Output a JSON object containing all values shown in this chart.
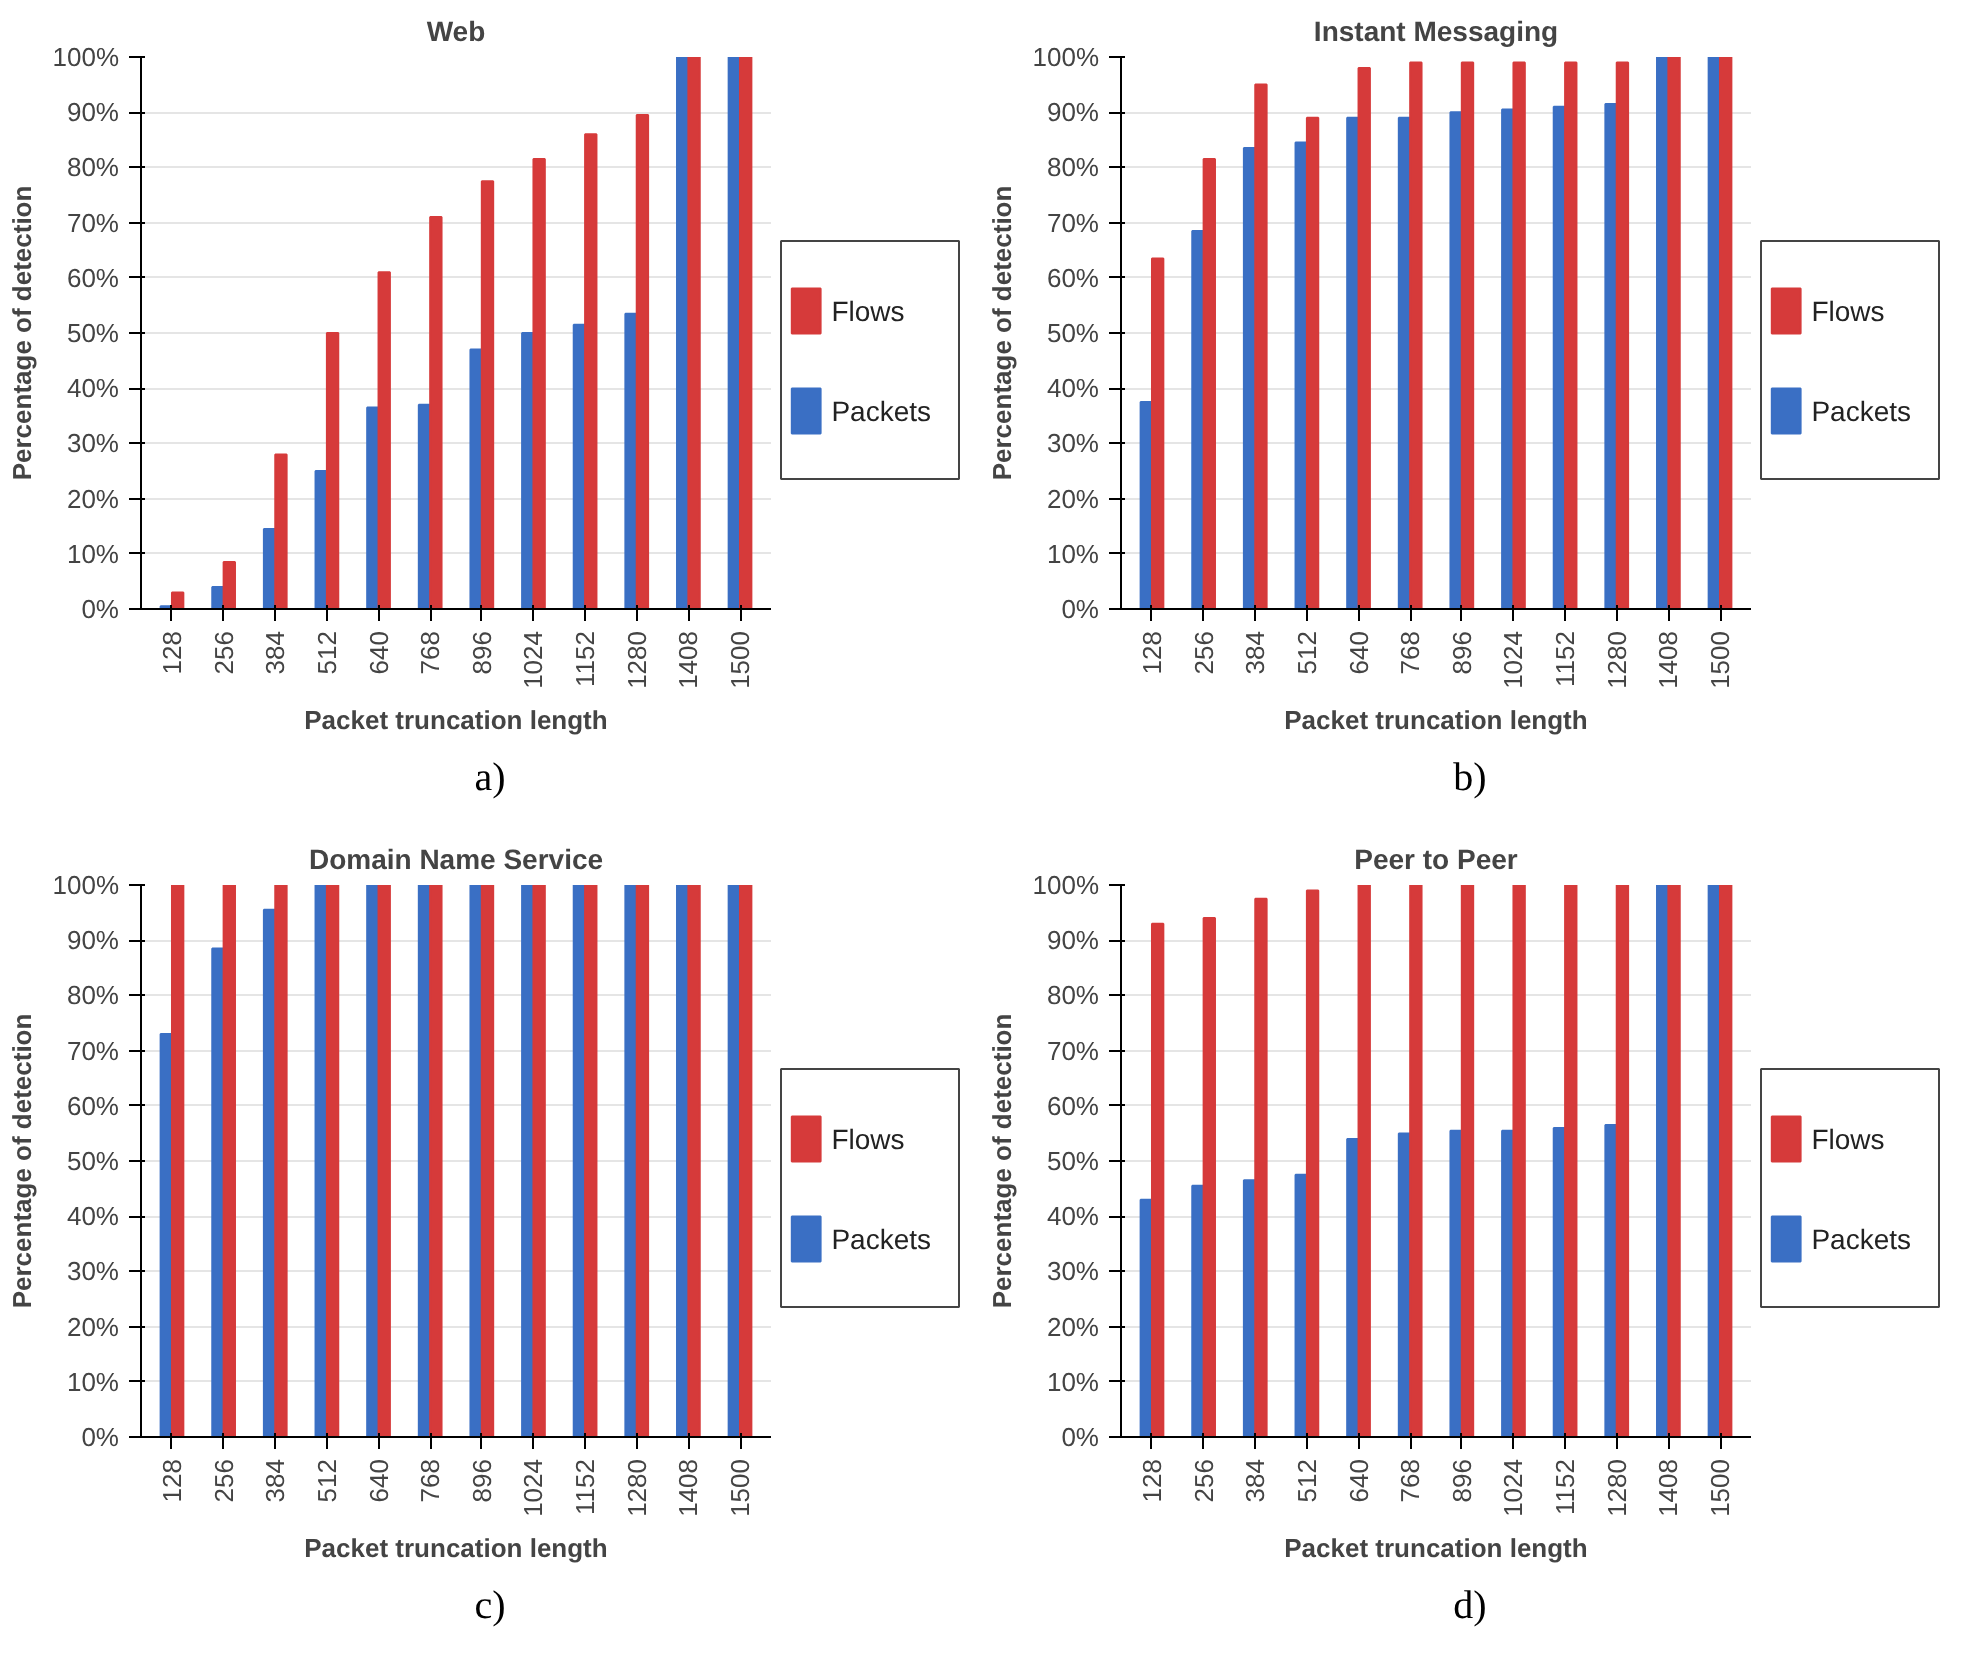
{
  "chart_data": [
    {
      "type": "bar",
      "title": "Web",
      "xlabel": "Packet truncation length",
      "ylabel": "Percentage of detection",
      "annotations": [
        "a)"
      ],
      "categories": [
        "128",
        "256",
        "384",
        "512",
        "640",
        "768",
        "896",
        "1024",
        "1152",
        "1280",
        "1408",
        "1500"
      ],
      "series": [
        {
          "name": "Packets",
          "color": "#3a6fc4",
          "values": [
            0.5,
            4,
            14.5,
            25,
            36.5,
            37,
            47,
            50,
            51.5,
            53.5,
            100,
            100
          ]
        },
        {
          "name": "Flows",
          "color": "#d63a3a",
          "values": [
            3,
            8.5,
            28,
            50,
            61,
            71,
            77.5,
            81.5,
            86,
            89.5,
            100,
            100
          ]
        }
      ],
      "ylim": [
        0,
        100
      ],
      "yticks": [
        {
          "value": 0,
          "label": "0%"
        },
        {
          "value": 10,
          "label": "10%"
        },
        {
          "value": 20,
          "label": "20%"
        },
        {
          "value": 30,
          "label": "30%"
        },
        {
          "value": 40,
          "label": "40%"
        },
        {
          "value": 50,
          "label": "50%"
        },
        {
          "value": 60,
          "label": "60%"
        },
        {
          "value": 70,
          "label": "70%"
        },
        {
          "value": 80,
          "label": "80%"
        },
        {
          "value": 90,
          "label": "90%"
        },
        {
          "value": 100,
          "label": "100%"
        }
      ],
      "grid": "y",
      "legend": "right"
    },
    {
      "type": "bar",
      "title": "Instant Messaging",
      "xlabel": "Packet truncation length",
      "ylabel": "Percentage of detection",
      "annotations": [
        "b)"
      ],
      "categories": [
        "128",
        "256",
        "384",
        "512",
        "640",
        "768",
        "896",
        "1024",
        "1152",
        "1280",
        "1408",
        "1500"
      ],
      "series": [
        {
          "name": "Packets",
          "color": "#3a6fc4",
          "values": [
            37.5,
            68.5,
            83.5,
            84.5,
            89,
            89,
            90,
            90.5,
            91,
            91.5,
            100,
            100
          ]
        },
        {
          "name": "Flows",
          "color": "#d63a3a",
          "values": [
            63.5,
            81.5,
            95,
            89,
            98,
            99,
            99,
            99,
            99,
            99,
            100,
            100
          ]
        }
      ],
      "ylim": [
        0,
        100
      ],
      "yticks": [
        {
          "value": 0,
          "label": "0%"
        },
        {
          "value": 10,
          "label": "10%"
        },
        {
          "value": 20,
          "label": "20%"
        },
        {
          "value": 30,
          "label": "30%"
        },
        {
          "value": 40,
          "label": "40%"
        },
        {
          "value": 50,
          "label": "50%"
        },
        {
          "value": 60,
          "label": "60%"
        },
        {
          "value": 70,
          "label": "70%"
        },
        {
          "value": 80,
          "label": "80%"
        },
        {
          "value": 90,
          "label": "90%"
        },
        {
          "value": 100,
          "label": "100%"
        }
      ],
      "grid": "y",
      "legend": "right"
    },
    {
      "type": "bar",
      "title": "Domain Name Service",
      "xlabel": "Packet truncation length",
      "ylabel": "Percentage of detection",
      "annotations": [
        "c)"
      ],
      "categories": [
        "128",
        "256",
        "384",
        "512",
        "640",
        "768",
        "896",
        "1024",
        "1152",
        "1280",
        "1408",
        "1500"
      ],
      "series": [
        {
          "name": "Packets",
          "color": "#3a6fc4",
          "values": [
            73,
            88.5,
            95.5,
            100,
            100,
            100,
            100,
            100,
            100,
            100,
            100,
            100
          ]
        },
        {
          "name": "Flows",
          "color": "#d63a3a",
          "values": [
            100,
            100,
            100,
            100,
            100,
            100,
            100,
            100,
            100,
            100,
            100,
            100
          ]
        }
      ],
      "ylim": [
        0,
        100
      ],
      "yticks": [
        {
          "value": 0,
          "label": "0%"
        },
        {
          "value": 10,
          "label": "10%"
        },
        {
          "value": 20,
          "label": "20%"
        },
        {
          "value": 30,
          "label": "30%"
        },
        {
          "value": 40,
          "label": "40%"
        },
        {
          "value": 50,
          "label": "50%"
        },
        {
          "value": 60,
          "label": "60%"
        },
        {
          "value": 70,
          "label": "70%"
        },
        {
          "value": 80,
          "label": "80%"
        },
        {
          "value": 90,
          "label": "90%"
        },
        {
          "value": 100,
          "label": "100%"
        }
      ],
      "grid": "y",
      "legend": "right"
    },
    {
      "type": "bar",
      "title": "Peer to Peer",
      "xlabel": "Packet truncation length",
      "ylabel": "Percentage of detection",
      "annotations": [
        "d)"
      ],
      "categories": [
        "128",
        "256",
        "384",
        "512",
        "640",
        "768",
        "896",
        "1024",
        "1152",
        "1280",
        "1408",
        "1500"
      ],
      "series": [
        {
          "name": "Packets",
          "color": "#3a6fc4",
          "values": [
            43,
            45.5,
            46.5,
            47.5,
            54,
            55,
            55.5,
            55.5,
            56,
            56.5,
            100,
            100
          ]
        },
        {
          "name": "Flows",
          "color": "#d63a3a",
          "values": [
            93,
            94,
            97.5,
            99,
            100,
            100,
            100,
            100,
            100,
            100,
            100,
            100
          ]
        }
      ],
      "ylim": [
        0,
        100
      ],
      "yticks": [
        {
          "value": 0,
          "label": "0%"
        },
        {
          "value": 10,
          "label": "10%"
        },
        {
          "value": 20,
          "label": "20%"
        },
        {
          "value": 30,
          "label": "30%"
        },
        {
          "value": 40,
          "label": "40%"
        },
        {
          "value": 50,
          "label": "50%"
        },
        {
          "value": 60,
          "label": "60%"
        },
        {
          "value": 70,
          "label": "70%"
        },
        {
          "value": 80,
          "label": "80%"
        },
        {
          "value": 90,
          "label": "90%"
        },
        {
          "value": 100,
          "label": "100%"
        }
      ],
      "grid": "y",
      "legend": "right"
    }
  ]
}
